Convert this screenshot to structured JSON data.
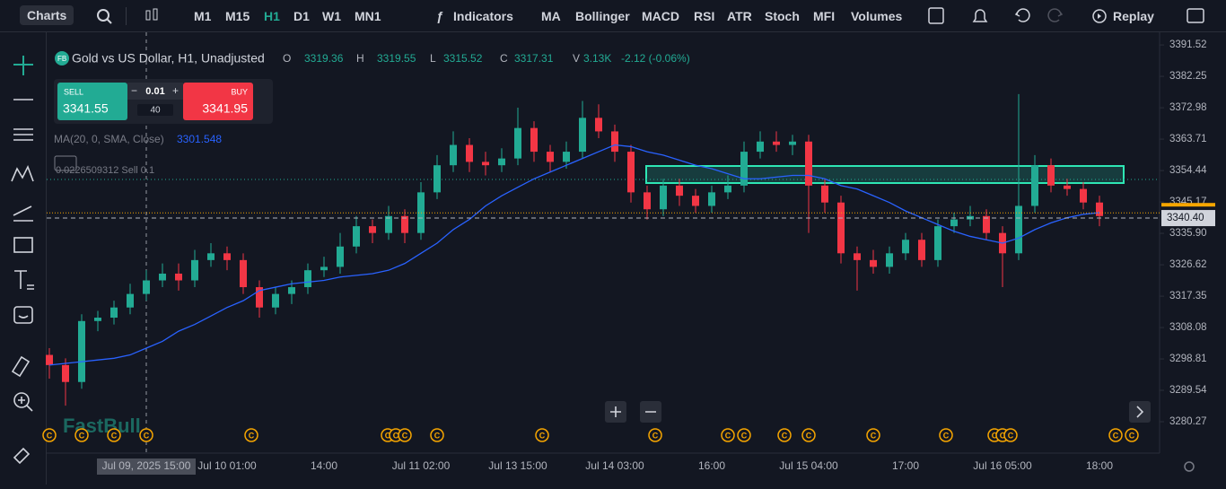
{
  "toolbar": {
    "charts": "Charts",
    "intervals": [
      "M1",
      "M15",
      "H1",
      "D1",
      "W1",
      "MN1"
    ],
    "indicators": "Indicators",
    "quick": [
      "MA",
      "Bollinger",
      "MACD",
      "RSI",
      "ATR",
      "Stoch",
      "MFI",
      "Volumes"
    ],
    "replay": "Replay"
  },
  "header": {
    "symbol": "Gold vs US Dollar, H1, Unadjusted",
    "o_label": "O",
    "o": 3319.36,
    "h_label": "H",
    "h": 3319.55,
    "l_label": "L",
    "l": 3315.52,
    "c_label": "C",
    "c": 3317.31,
    "v_label": "V",
    "v": "3.13K",
    "change": "-2.12 (-0.06%)"
  },
  "trade": {
    "sell_label": "SELL",
    "sell": 3341.55,
    "buy_label": "BUY",
    "buy": 3341.95,
    "lot": 0.01,
    "spread": 40
  },
  "order_line": "0.0226509312 Sell 0.1",
  "logo": "FastBull",
  "events": [
    "C",
    "C",
    "C",
    "C",
    "C",
    "C",
    "C",
    "C",
    "C",
    "C",
    "C",
    "C",
    "C",
    "C",
    "C",
    "C",
    "C",
    "C",
    "C",
    "C",
    "C",
    "C"
  ],
  "chart_data": {
    "type": "candlestick",
    "categories": [
      null,
      null,
      null,
      null,
      null,
      null,
      "Jul 09, 2025 15:00",
      null,
      null,
      null,
      null,
      "Jul 10 01:00",
      null,
      null,
      null,
      null,
      null,
      "14:00",
      null,
      null,
      null,
      null,
      null,
      "Jul 11 02:00",
      null,
      null,
      null,
      null,
      null,
      "Jul 13 15:00",
      null,
      null,
      null,
      null,
      null,
      "Jul 14 03:00",
      null,
      null,
      null,
      null,
      null,
      "16:00",
      null,
      null,
      null,
      null,
      null,
      "Jul 15 04:00",
      null,
      null,
      null,
      null,
      null,
      "17:00",
      null,
      null,
      null,
      null,
      null,
      "Jul 16 05:00",
      null,
      null,
      null,
      null,
      null,
      "18:00"
    ],
    "open": [
      3300,
      3297,
      3292,
      3310,
      3311,
      3314,
      3318,
      3322,
      3324,
      3322,
      3328,
      3330,
      3328,
      3320,
      3314,
      3318,
      3320,
      3325,
      3326,
      3332,
      3338,
      3336,
      3341,
      3336,
      3348,
      3356,
      3362,
      3357,
      3356,
      3358,
      3367,
      3360,
      3357,
      3360,
      3370,
      3366,
      3360,
      3348,
      3343,
      3350,
      3347,
      3344,
      3348,
      3350,
      3360,
      3363,
      3362,
      3363,
      3350,
      3345,
      3330,
      3328,
      3326,
      3330,
      3334,
      3328,
      3338,
      3340,
      3341,
      3336,
      3330,
      3344,
      3356,
      3350,
      3349,
      3345
    ],
    "high": [
      3302,
      3299,
      3312,
      3313,
      3316,
      3321,
      3325,
      3327,
      3327,
      3331,
      3333,
      3332,
      3330,
      3322,
      3320,
      3322,
      3327,
      3329,
      3336,
      3341,
      3340,
      3344,
      3343,
      3351,
      3359,
      3366,
      3364,
      3360,
      3361,
      3373,
      3369,
      3362,
      3363,
      3375,
      3374,
      3368,
      3362,
      3350,
      3352,
      3352,
      3349,
      3350,
      3353,
      3363,
      3366,
      3366,
      3365,
      3365,
      3352,
      3347,
      3332,
      3331,
      3332,
      3336,
      3336,
      3340,
      3342,
      3344,
      3343,
      3338,
      3377,
      3359,
      3358,
      3352,
      3351,
      3347
    ],
    "low": [
      3293,
      3285,
      3290,
      3307,
      3309,
      3312,
      3316,
      3320,
      3319,
      3320,
      3326,
      3325,
      3318,
      3311,
      3312,
      3315,
      3318,
      3323,
      3324,
      3330,
      3333,
      3334,
      3333,
      3334,
      3346,
      3354,
      3354,
      3353,
      3354,
      3356,
      3357,
      3354,
      3355,
      3358,
      3364,
      3357,
      3345,
      3340,
      3341,
      3344,
      3342,
      3342,
      3346,
      3348,
      3358,
      3360,
      3359,
      3336,
      3342,
      3327,
      3319,
      3324,
      3324,
      3328,
      3326,
      3326,
      3336,
      3338,
      3334,
      3320,
      3328,
      3342,
      3348,
      3347,
      3343,
      3338
    ],
    "close": [
      3297,
      3292,
      3310,
      3311,
      3314,
      3318,
      3322,
      3324,
      3322,
      3328,
      3330,
      3328,
      3320,
      3314,
      3318,
      3320,
      3325,
      3326,
      3332,
      3338,
      3336,
      3341,
      3336,
      3348,
      3356,
      3362,
      3357,
      3356,
      3358,
      3367,
      3360,
      3357,
      3360,
      3370,
      3366,
      3360,
      3348,
      3343,
      3350,
      3347,
      3344,
      3348,
      3350,
      3360,
      3363,
      3362,
      3363,
      3350,
      3345,
      3330,
      3328,
      3326,
      3330,
      3334,
      3328,
      3338,
      3340,
      3341,
      3336,
      3330,
      3344,
      3356,
      3350,
      3349,
      3345,
      3341
    ],
    "ma": {
      "name": "MA(20, 0, SMA, Close)",
      "value": 3301.548,
      "color": "#2962ff",
      "values": [
        3297,
        3297.5,
        3298,
        3298.5,
        3299,
        3300,
        3302,
        3304,
        3307,
        3309,
        3311.5,
        3314,
        3316,
        3319,
        3320,
        3321,
        3321.5,
        3322,
        3323,
        3323.5,
        3324,
        3325,
        3327,
        3330,
        3333,
        3337,
        3340,
        3344,
        3347,
        3349.5,
        3352,
        3354,
        3356,
        3358,
        3360,
        3362,
        3361.5,
        3360,
        3359,
        3357.5,
        3356,
        3355,
        3353.5,
        3352,
        3352,
        3352.5,
        3353,
        3353,
        3352,
        3350,
        3349,
        3347,
        3345,
        3342.5,
        3340.5,
        3338.5,
        3336.5,
        3335,
        3334,
        3333,
        3334.5,
        3337,
        3339,
        3340.5,
        3341.5,
        3342
      ]
    },
    "colors": {
      "up": "#22ab94",
      "down": "#f23645"
    },
    "last_price": {
      "value": 3340.4,
      "label": "3340.40"
    },
    "ylim": [
      3271.0,
      3394.2
    ],
    "yticks": [
      3391.52,
      3382.25,
      3372.98,
      3363.71,
      3354.44,
      3345.17,
      {
        "value": 3335.9,
        "label": "3335.90"
      },
      3326.62,
      3317.35,
      3308.08,
      3298.81,
      3289.54,
      3280.27
    ]
  }
}
